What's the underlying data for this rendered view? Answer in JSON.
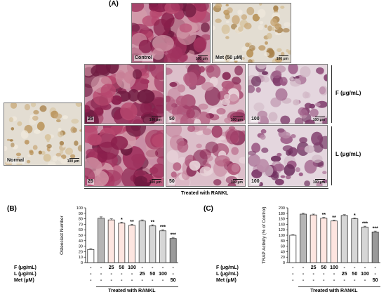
{
  "panel_a": {
    "label": "(A)",
    "top_images": [
      {
        "id": "control",
        "caption": "Control",
        "scale": "100 μm",
        "tone": "purple-dense"
      },
      {
        "id": "met",
        "caption": "Met (50 μM)",
        "scale": "100 μm",
        "tone": "brown-sparse"
      }
    ],
    "normal": {
      "caption": "Normal",
      "scale": "100 μm",
      "tone": "brown-sparse"
    },
    "rows": [
      {
        "label": "F (μg/mL)",
        "images": [
          {
            "caption": "25",
            "scale": "100 μm",
            "tone": "purple-dense"
          },
          {
            "caption": "50",
            "scale": "100 μm",
            "tone": "purple-medium"
          },
          {
            "caption": "100",
            "scale": "100 μm",
            "tone": "purple-light"
          }
        ]
      },
      {
        "label": "L (μg/mL)",
        "images": [
          {
            "caption": "25",
            "scale": "100 μm",
            "tone": "purple-dense"
          },
          {
            "caption": "50",
            "scale": "100 μm",
            "tone": "purple-medium"
          },
          {
            "caption": "100",
            "scale": "100 μm",
            "tone": "purple-light"
          }
        ]
      }
    ],
    "treated_label": "Treated with RANKL"
  },
  "chart_data": [
    {
      "panel": "(B)",
      "type": "bar",
      "ylabel": "Osteoclast Number",
      "ylim": [
        0,
        100
      ],
      "yticks": [
        0,
        10,
        20,
        30,
        40,
        50,
        60,
        70,
        80,
        90,
        100
      ],
      "values": [
        24,
        81,
        78,
        72,
        68,
        76,
        67,
        58,
        44
      ],
      "errors": [
        1.5,
        2.5,
        2,
        2,
        2,
        2,
        2,
        2,
        2
      ],
      "significance": [
        "",
        "",
        "",
        "*",
        "**",
        "",
        "**",
        "***",
        "***"
      ],
      "bar_fills": [
        "#ffffff",
        "#b5b5b5",
        "#fde5e0",
        "#fde5e0",
        "#fde5e0",
        "#d6d6d6",
        "#d6d6d6",
        "#d6d6d6",
        "#9a9a9a"
      ],
      "table": {
        "rows": [
          {
            "label": "F (μg/mL)",
            "cells": [
              "-",
              "-",
              "25",
              "50",
              "100",
              "-",
              "-",
              "-",
              "-"
            ]
          },
          {
            "label": "L (μg/mL)",
            "cells": [
              "-",
              "-",
              "-",
              "-",
              "-",
              "25",
              "50",
              "100",
              "-"
            ]
          },
          {
            "label": "Met (μM)",
            "cells": [
              "-",
              "-",
              "-",
              "-",
              "-",
              "-",
              "-",
              "-",
              "50"
            ]
          }
        ],
        "treated_label": "Treated with RANKL"
      }
    },
    {
      "panel": "(C)",
      "type": "bar",
      "ylabel": "TRAP Activity (% of Control)",
      "ylim": [
        0,
        200
      ],
      "yticks": [
        0,
        20,
        40,
        60,
        80,
        100,
        120,
        140,
        160,
        180,
        200
      ],
      "values": [
        100,
        177,
        174,
        162,
        152,
        172,
        160,
        130,
        112
      ],
      "errors": [
        2,
        4,
        3,
        3,
        3,
        3,
        3,
        3,
        3
      ],
      "significance": [
        "",
        "",
        "",
        "**",
        "**",
        "",
        "*",
        "***",
        "***"
      ],
      "bar_fills": [
        "#ffffff",
        "#b5b5b5",
        "#fde5e0",
        "#fde5e0",
        "#fde5e0",
        "#d6d6d6",
        "#d6d6d6",
        "#d6d6d6",
        "#9a9a9a"
      ],
      "table": {
        "rows": [
          {
            "label": "F (μg/mL)",
            "cells": [
              "-",
              "-",
              "25",
              "50",
              "100",
              "-",
              "-",
              "-",
              "-"
            ]
          },
          {
            "label": "L (μg/mL)",
            "cells": [
              "-",
              "-",
              "-",
              "-",
              "-",
              "25",
              "50",
              "100",
              "-"
            ]
          },
          {
            "label": "Met (μM)",
            "cells": [
              "-",
              "-",
              "-",
              "-",
              "-",
              "-",
              "-",
              "-",
              "50"
            ]
          }
        ],
        "treated_label": "Treated with RANKL"
      }
    }
  ]
}
